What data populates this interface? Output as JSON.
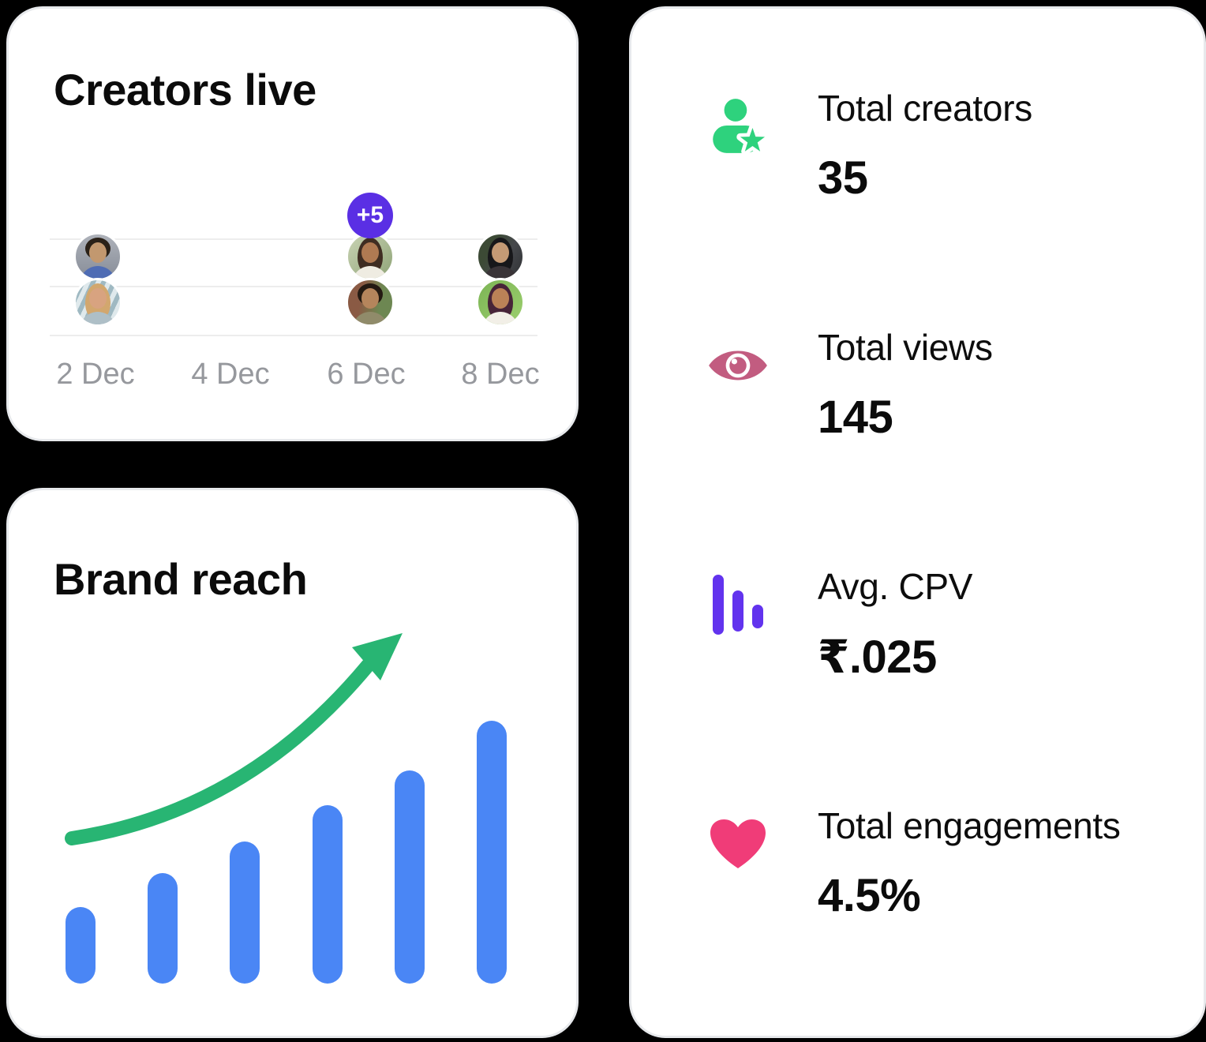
{
  "colors": {
    "badge_purple": "#5A2FE4",
    "bar_blue": "#4A86F5",
    "arrow_green": "#28B573",
    "icon_green": "#2ED27D",
    "eye_pink": "#C25C80",
    "bars_purple": "#6233EE",
    "heart_pink": "#F03C78"
  },
  "creators_live_card": {
    "title": "Creators live",
    "overflow_badge": "+5",
    "x_labels": [
      "2 Dec",
      "4 Dec",
      "6 Dec",
      "8 Dec"
    ],
    "avatars": [
      {
        "name": "man with sunglasses and blue jacket",
        "date": "2 Dec",
        "bg": "linear-gradient(180deg,#aeb2ba,#878d98)",
        "hair": "#2a2118",
        "skin": "#c2986f",
        "shirt": "#4f6cb4",
        "long_hair": false
      },
      {
        "name": "blonde woman on striped background",
        "date": "2 Dec",
        "bg": "repeating-linear-gradient(115deg,#dfe9ec 0 6px,#9fb9c2 6px 12px)",
        "hair": "#d2a76e",
        "skin": "#d8a380",
        "shirt": "#aebfc7",
        "long_hair": true
      },
      {
        "name": "smiling woman with plants behind",
        "date": "6 Dec",
        "bg": "linear-gradient(135deg,#c9d3b4,#8fa477)",
        "hair": "#3f2d22",
        "skin": "#b07a52",
        "shirt": "#efece2",
        "long_hair": true
      },
      {
        "name": "bearded man in olive shirt",
        "date": "6 Dec",
        "bg": "linear-gradient(100deg,#8a5a44 0 30%,#6d8752 70%)",
        "hair": "#241a12",
        "skin": "#b5855c",
        "shirt": "#908b6a",
        "long_hair": false
      },
      {
        "name": "woman in dark photo with leaves",
        "date": "8 Dec",
        "bg": "linear-gradient(120deg,#3c4a35 0 28%,#46484c 60%,#2f3134)",
        "hair": "#17171a",
        "skin": "#c49a75",
        "shirt": "#3a3438",
        "long_hair": true
      },
      {
        "name": "woman with green foliage behind",
        "date": "8 Dec",
        "bg": "linear-gradient(135deg,#7cb455,#9ccf6e)",
        "hair": "#472438",
        "skin": "#bb8257",
        "shirt": "#f2efe7",
        "long_hair": true
      }
    ]
  },
  "brand_reach_card": {
    "title": "Brand reach",
    "chart": {
      "type": "bar",
      "values": [
        29,
        42,
        54,
        68,
        81,
        100
      ],
      "unit": "relative height, % of tallest bar",
      "trend": "rising curved arrow"
    }
  },
  "stats_card": {
    "items": [
      {
        "icon": "user-star-icon",
        "label": "Total creators",
        "value": "35"
      },
      {
        "icon": "eye-icon",
        "label": "Total views",
        "value": "145"
      },
      {
        "icon": "bar-chart-icon",
        "label": "Avg. CPV",
        "value": "₹.025"
      },
      {
        "icon": "heart-icon",
        "label": "Total engagements",
        "value": "4.5%"
      }
    ]
  }
}
